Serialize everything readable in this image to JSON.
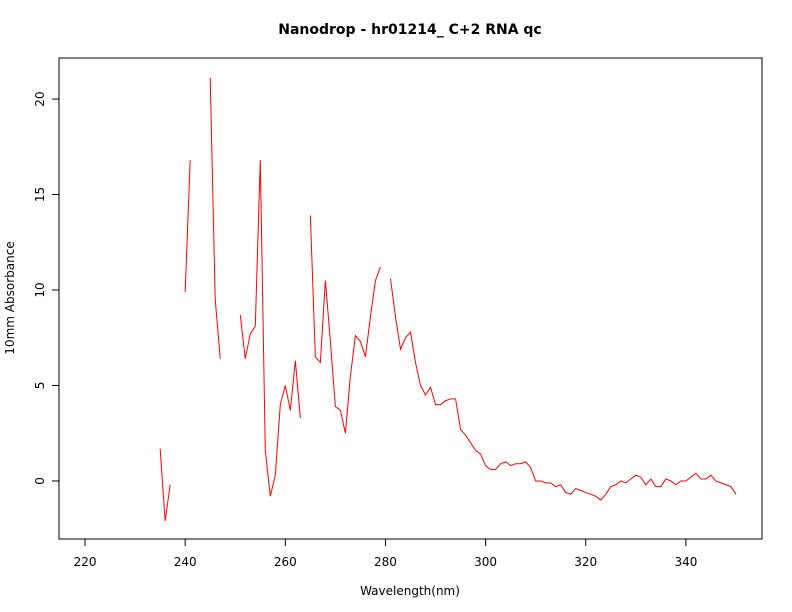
{
  "chart_data": {
    "type": "line",
    "title": "Nanodrop - hr01214_ C+2 RNA qc",
    "x_label": "Wavelength(nm)",
    "y_label": "10mm Absorbance",
    "x": [
      220,
      221,
      222,
      223,
      224,
      225,
      226,
      227,
      228,
      229,
      230,
      231,
      232,
      233,
      234,
      235,
      236,
      237,
      238,
      239,
      240,
      241,
      242,
      243,
      244,
      245,
      246,
      247,
      248,
      249,
      250,
      251,
      252,
      253,
      254,
      255,
      256,
      257,
      258,
      259,
      260,
      261,
      262,
      263,
      264,
      265,
      266,
      267,
      268,
      269,
      270,
      271,
      272,
      273,
      274,
      275,
      276,
      277,
      278,
      279,
      280,
      281,
      282,
      283,
      284,
      285,
      286,
      287,
      288,
      289,
      290,
      291,
      292,
      293,
      294,
      295,
      296,
      297,
      298,
      299,
      300,
      301,
      302,
      303,
      304,
      305,
      306,
      307,
      308,
      309,
      310,
      311,
      312,
      313,
      314,
      315,
      316,
      317,
      318,
      319,
      320,
      321,
      322,
      323,
      324,
      325,
      326,
      327,
      328,
      329,
      330,
      331,
      332,
      333,
      334,
      335,
      336,
      337,
      338,
      339,
      340,
      341,
      342,
      343,
      344,
      345,
      346,
      347,
      348,
      349,
      350
    ],
    "values": [
      null,
      null,
      null,
      null,
      null,
      null,
      null,
      null,
      null,
      null,
      null,
      null,
      null,
      null,
      null,
      1.7,
      -2.1,
      -0.2,
      null,
      null,
      9.9,
      16.8,
      null,
      null,
      null,
      21.1,
      9.5,
      6.4,
      null,
      null,
      null,
      8.7,
      6.4,
      7.7,
      8.1,
      16.8,
      1.6,
      -0.8,
      0.3,
      4.0,
      5.0,
      3.7,
      6.3,
      3.3,
      null,
      13.9,
      6.5,
      6.2,
      10.5,
      7.3,
      3.9,
      3.7,
      2.5,
      5.5,
      7.6,
      7.3,
      6.5,
      8.6,
      10.5,
      11.2,
      null,
      10.6,
      8.6,
      6.9,
      7.5,
      7.8,
      6.2,
      5.0,
      4.5,
      4.9,
      4.0,
      4.0,
      4.2,
      4.3,
      4.3,
      2.7,
      2.4,
      2.0,
      1.6,
      1.4,
      0.8,
      0.6,
      0.6,
      0.9,
      1.0,
      0.8,
      0.9,
      0.9,
      1.0,
      0.7,
      0.0,
      0.0,
      -0.1,
      -0.1,
      -0.3,
      -0.2,
      -0.6,
      -0.7,
      -0.4,
      -0.5,
      -0.6,
      -0.7,
      -0.8,
      -1.0,
      -0.7,
      -0.3,
      -0.2,
      0.0,
      -0.1,
      0.1,
      0.3,
      0.2,
      -0.2,
      0.1,
      -0.3,
      -0.3,
      0.1,
      0.0,
      -0.2,
      0.0,
      0.0,
      0.2,
      0.4,
      0.1,
      0.1,
      0.3,
      0.0,
      -0.1,
      -0.2,
      -0.3,
      -0.7
    ],
    "color": "#ff0000",
    "xlim": [
      214.8,
      355.2
    ],
    "xticks": [
      220,
      240,
      260,
      280,
      300,
      320,
      340
    ],
    "ylim": [
      -3.04,
      22.15
    ],
    "yticks": [
      0,
      5,
      10,
      15,
      20
    ]
  }
}
